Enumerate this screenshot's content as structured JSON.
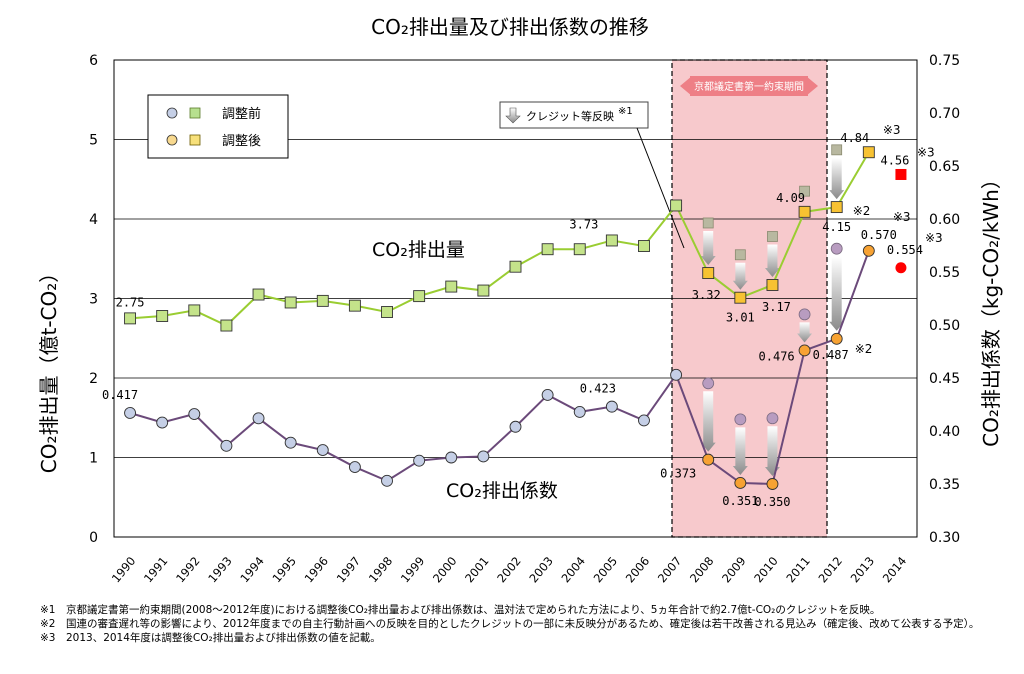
{
  "chart_data": {
    "type": "line",
    "title": "CO₂排出量及び排出係数の推移",
    "x": [
      "1990",
      "1991",
      "1992",
      "1993",
      "1994",
      "1995",
      "1996",
      "1997",
      "1998",
      "1999",
      "2000",
      "2001",
      "2002",
      "2003",
      "2004",
      "2005",
      "2006",
      "2007",
      "2008",
      "2009",
      "2010",
      "2011",
      "2012",
      "2013",
      "2014"
    ],
    "ylabel_left": "CO₂排出量（億t-CO₂）",
    "ylabel_right": "CO₂排出係数（kg-CO₂/kWh）",
    "ylim_left": [
      0,
      6
    ],
    "yticks_left": [
      "0",
      "1",
      "2",
      "3",
      "4",
      "5",
      "6"
    ],
    "ylim_right": [
      0.3,
      0.75
    ],
    "yticks_right": [
      "0.30",
      "0.35",
      "0.40",
      "0.45",
      "0.50",
      "0.55",
      "0.60",
      "0.65",
      "0.70",
      "0.75"
    ],
    "grid": true,
    "legend": {
      "placement": "top-left",
      "entries": [
        {
          "label": "調整前"
        },
        {
          "label": "調整後"
        }
      ]
    },
    "series": [
      {
        "name": "CO₂排出量",
        "axis": "left",
        "values": [
          2.75,
          2.78,
          2.85,
          2.66,
          3.05,
          2.95,
          2.97,
          2.91,
          2.83,
          3.03,
          3.15,
          3.1,
          3.4,
          3.62,
          3.62,
          3.73,
          3.66,
          4.17,
          3.32,
          3.01,
          3.17,
          4.09,
          4.15,
          4.84,
          4.56
        ],
        "pre_adjustment": {
          "2008": 3.95,
          "2009": 3.55,
          "2010": 3.78,
          "2011": 4.35,
          "2012": 4.87
        }
      },
      {
        "name": "CO₂排出係数",
        "axis": "right",
        "values": [
          0.417,
          0.408,
          0.416,
          0.386,
          0.412,
          0.389,
          0.382,
          0.366,
          0.353,
          0.372,
          0.375,
          0.376,
          0.404,
          0.434,
          0.418,
          0.423,
          0.41,
          0.453,
          0.373,
          0.351,
          0.35,
          0.476,
          0.487,
          0.57,
          0.554
        ],
        "pre_adjustment": {
          "2008": 0.445,
          "2009": 0.411,
          "2010": 0.412,
          "2011": 0.51,
          "2012": 0.572
        }
      }
    ],
    "data_labels": [
      {
        "x": "1990",
        "series": "CO₂排出量",
        "text": "2.75"
      },
      {
        "x": "2005",
        "series": "CO₂排出量",
        "text": "3.73"
      },
      {
        "x": "2008",
        "series": "CO₂排出量",
        "text": "3.32"
      },
      {
        "x": "2009",
        "series": "CO₂排出量",
        "text": "3.01"
      },
      {
        "x": "2010",
        "series": "CO₂排出量",
        "text": "3.17"
      },
      {
        "x": "2011",
        "series": "CO₂排出量",
        "text": "4.09"
      },
      {
        "x": "2012",
        "series": "CO₂排出量",
        "text": "4.15"
      },
      {
        "x": "2013",
        "series": "CO₂排出量",
        "text": "4.84"
      },
      {
        "x": "2014",
        "series": "CO₂排出量",
        "text": "4.56"
      },
      {
        "x": "1990",
        "series": "CO₂排出係数",
        "text": "0.417"
      },
      {
        "x": "2005",
        "series": "CO₂排出係数",
        "text": "0.423"
      },
      {
        "x": "2008",
        "series": "CO₂排出係数",
        "text": "0.373"
      },
      {
        "x": "2009",
        "series": "CO₂排出係数",
        "text": "0.351"
      },
      {
        "x": "2010",
        "series": "CO₂排出係数",
        "text": "0.350"
      },
      {
        "x": "2011",
        "series": "CO₂排出係数",
        "text": "0.476"
      },
      {
        "x": "2012",
        "series": "CO₂排出係数",
        "text": "0.487"
      },
      {
        "x": "2013",
        "series": "CO₂排出係数",
        "text": "0.570"
      },
      {
        "x": "2014",
        "series": "CO₂排出係数",
        "text": "0.554"
      }
    ],
    "annotations": {
      "series_label_emissions": "CO₂排出量",
      "series_label_factor": "CO₂排出係数",
      "kyoto_period": "京都議定書第一約束期間",
      "credit_callout": "クレジット等反映",
      "credit_mark": "※1",
      "note_mark_2": "※2",
      "note_mark_3": "※3"
    },
    "colors": {
      "emissions_line": "#9acd32",
      "emissions_marker": "#c4e38a",
      "emissions_adjusted_marker": "#f7c232",
      "emissions_pre_marker": "#b8b8a0",
      "factor_line": "#6b4a7a",
      "factor_marker": "#c5cfe6",
      "factor_adjusted_marker": "#f7a233",
      "factor_pre_marker": "#b89cc0",
      "estimate_marker": "#ff0000",
      "kyoto_band": "#f7c9cc",
      "kyoto_banner": "#ee7f86"
    }
  },
  "footnotes": [
    "※1　京都議定書第一約束期間(2008～2012年度)における調整後CO₂排出量および排出係数は、温対法で定められた方法により、5ヵ年合計で約2.7億t-CO₂のクレジットを反映。",
    "※2　国連の審査遅れ等の影響により、2012年度までの自主行動計画への反映を目的としたクレジットの一部に未反映分があるため、確定後は若干改善される見込み（確定後、改めて公表する予定）。",
    "※3　2013、2014年度は調整後CO₂排出量および排出係数の値を記載。"
  ]
}
